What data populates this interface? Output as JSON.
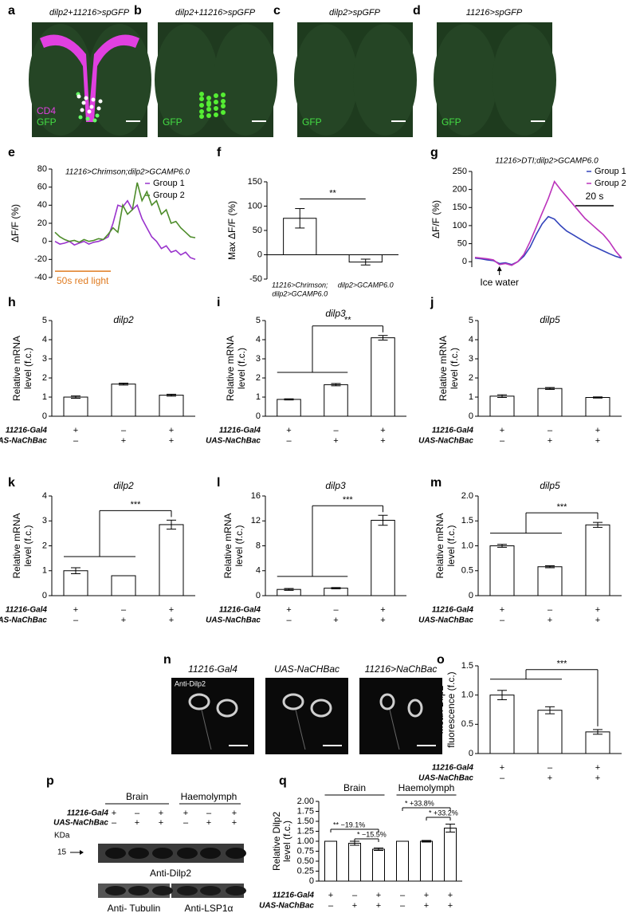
{
  "images": [
    {
      "label": "a",
      "title": "dilp2+11216>spGFP",
      "channels": [
        "CD4",
        "GFP"
      ]
    },
    {
      "label": "b",
      "title": "dilp2+11216>spGFP",
      "channels": [
        "GFP"
      ]
    },
    {
      "label": "c",
      "title": "dilp2>spGFP",
      "channels": [
        "GFP"
      ]
    },
    {
      "label": "d",
      "title": "11216>spGFP",
      "channels": [
        "GFP"
      ]
    }
  ],
  "chart_data": [
    {
      "label": "e",
      "type": "line",
      "title": "11216>Chrimson;dilp2>GCAMP6.0",
      "ylabel": [
        "ΔF/F (%)"
      ],
      "ylim": [
        -40,
        80
      ],
      "yticks": [
        -40,
        -20,
        0,
        20,
        40,
        60,
        80
      ],
      "legend": "upper right",
      "series": [
        {
          "name": "Group 1",
          "color": "#9933cc",
          "values": [
            0,
            -3,
            -2,
            0,
            -4,
            -2,
            0,
            -3,
            -1,
            0,
            2,
            5,
            20,
            40,
            38,
            45,
            35,
            40,
            25,
            15,
            5,
            0,
            -8,
            -5,
            -12,
            -10,
            -15,
            -12,
            -18,
            -20
          ]
        },
        {
          "name": "Group 2",
          "color": "#4d8c2a",
          "values": [
            10,
            5,
            2,
            0,
            1,
            -1,
            2,
            0,
            1,
            3,
            2,
            8,
            15,
            10,
            40,
            30,
            35,
            65,
            45,
            55,
            40,
            45,
            30,
            35,
            20,
            22,
            15,
            10,
            5,
            4
          ]
        }
      ],
      "annotation": "50s red light",
      "annotation_color": "#e07b20"
    },
    {
      "label": "f",
      "type": "bar",
      "ylabel": [
        "Max ΔF/F (%)"
      ],
      "ylim": [
        -50,
        150
      ],
      "yticks": [
        -50,
        0,
        50,
        100,
        150
      ],
      "categories": [
        [
          "11216>Chrimson;",
          "dilp2>GCAMP6.0"
        ],
        [
          "dilp2>GCAMP6.0"
        ]
      ],
      "values": [
        75,
        -15
      ],
      "errors": [
        20,
        6
      ],
      "significance": "**",
      "color": "#ffffff"
    },
    {
      "label": "g",
      "type": "line",
      "title": "11216>DTI;dilp2>GCAMP6.0",
      "ylabel": [
        "ΔF/F (%)"
      ],
      "ylim": [
        -15,
        250
      ],
      "yticks": [
        0,
        50,
        100,
        150,
        200,
        250
      ],
      "legend": "upper right",
      "series": [
        {
          "name": "Group 1",
          "color": "#3344bb",
          "values": [
            10,
            8,
            5,
            3,
            -5,
            -3,
            -8,
            0,
            15,
            40,
            75,
            105,
            125,
            118,
            100,
            85,
            75,
            65,
            55,
            45,
            38,
            30,
            22,
            15,
            10
          ]
        },
        {
          "name": "Group 2",
          "color": "#bb33bb",
          "values": [
            12,
            10,
            8,
            5,
            -8,
            -5,
            -10,
            0,
            20,
            55,
            95,
            135,
            175,
            222,
            200,
            180,
            160,
            140,
            120,
            105,
            90,
            75,
            55,
            30,
            10
          ]
        }
      ],
      "annotation": "Ice water",
      "scalebar": "20 s"
    },
    {
      "label": "h",
      "type": "bar",
      "title": "dilp2",
      "ylabel": [
        "Relative mRNA",
        "level (f.c.)"
      ],
      "ylim": [
        0,
        5
      ],
      "yticks": [
        0,
        1,
        2,
        3,
        4,
        5
      ],
      "values": [
        1.0,
        1.68,
        1.1
      ],
      "errors": [
        0.06,
        0.05,
        0.05
      ],
      "color": "#ffffff",
      "genotype": {
        "rows": [
          "11216-Gal4",
          "UAS-NaChBac"
        ],
        "signs": [
          [
            "+",
            "–",
            "+"
          ],
          [
            "–",
            "+",
            "+"
          ]
        ]
      }
    },
    {
      "label": "i",
      "type": "bar",
      "title": "dilp3",
      "ylabel": [
        "Relative mRNA",
        "level (f.c.)"
      ],
      "ylim": [
        0,
        5
      ],
      "yticks": [
        0,
        1,
        2,
        3,
        4,
        5
      ],
      "values": [
        0.88,
        1.65,
        4.1
      ],
      "errors": [
        0.03,
        0.06,
        0.12
      ],
      "significance": "**",
      "color": "#ffffff",
      "genotype": {
        "rows": [
          "11216-Gal4",
          "UAS-NaChBac"
        ],
        "signs": [
          [
            "+",
            "–",
            "+"
          ],
          [
            "–",
            "+",
            "+"
          ]
        ]
      }
    },
    {
      "label": "j",
      "type": "bar",
      "title": "dilp5",
      "ylabel": [
        "Relative mRNA",
        "level (f.c.)"
      ],
      "ylim": [
        0,
        5
      ],
      "yticks": [
        0,
        1,
        2,
        3,
        4,
        5
      ],
      "values": [
        1.05,
        1.45,
        0.98
      ],
      "errors": [
        0.07,
        0.05,
        0.03
      ],
      "color": "#ffffff",
      "genotype": {
        "rows": [
          "11216-Gal4",
          "UAS-NaChBac"
        ],
        "signs": [
          [
            "+",
            "–",
            "+"
          ],
          [
            "–",
            "+",
            "+"
          ]
        ]
      }
    },
    {
      "label": "k",
      "type": "bar",
      "title": "dilp2",
      "ylabel": [
        "Relative mRNA",
        "level (f.c.)"
      ],
      "ylim": [
        0,
        4
      ],
      "yticks": [
        0,
        1,
        2,
        3,
        4
      ],
      "values": [
        1.0,
        0.8,
        2.85
      ],
      "errors": [
        0.12,
        0,
        0.18
      ],
      "significance": "***",
      "color": "#ffffff",
      "genotype": {
        "rows": [
          "11216-Gal4",
          "UAS-NaChBac"
        ],
        "signs": [
          [
            "+",
            "–",
            "+"
          ],
          [
            "–",
            "+",
            "+"
          ]
        ]
      }
    },
    {
      "label": "l",
      "type": "bar",
      "title": "dilp3",
      "ylabel": [
        "Relative mRNA",
        "level (f.c.)"
      ],
      "ylim": [
        0,
        16
      ],
      "yticks": [
        0,
        4,
        8,
        12,
        16
      ],
      "values": [
        1.0,
        1.2,
        12.1
      ],
      "errors": [
        0.15,
        0.1,
        0.8
      ],
      "significance": "***",
      "color": "#ffffff",
      "genotype": {
        "rows": [
          "11216-Gal4",
          "UAS-NaChBac"
        ],
        "signs": [
          [
            "+",
            "–",
            "+"
          ],
          [
            "–",
            "+",
            "+"
          ]
        ]
      }
    },
    {
      "label": "m",
      "type": "bar",
      "title": "dilp5",
      "ylabel": [
        "Relative mRNA",
        "level (f.c.)"
      ],
      "ylim": [
        0,
        2
      ],
      "yticks": [
        0,
        0.5,
        {
          "value": 1,
          "label": "1.0"
        },
        1.5,
        {
          "value": 2,
          "label": "2.0"
        }
      ],
      "values": [
        1.0,
        0.58,
        1.42
      ],
      "errors": [
        0.03,
        0.02,
        0.05
      ],
      "significance": "***",
      "color": "#ffffff",
      "genotype": {
        "rows": [
          "11216-Gal4",
          "UAS-NaChBac"
        ],
        "signs": [
          [
            "+",
            "–",
            "+"
          ],
          [
            "–",
            "+",
            "+"
          ]
        ]
      }
    },
    {
      "label": "o",
      "type": "bar",
      "ylabel": [
        "Mean Dilp2",
        "fluorescence (f.c.)"
      ],
      "ylim": [
        0,
        1.5
      ],
      "yticks": [
        0,
        0.5,
        {
          "value": 1,
          "label": "1.0"
        },
        1.5
      ],
      "values": [
        1.0,
        0.74,
        0.37
      ],
      "errors": [
        0.08,
        0.06,
        0.04
      ],
      "significance": "***",
      "color": "#ffffff",
      "genotype": {
        "rows": [
          "11216-Gal4",
          "UAS-NaChBac"
        ],
        "signs": [
          [
            "+",
            "–",
            "+"
          ],
          [
            "–",
            "+",
            "+"
          ]
        ]
      }
    },
    {
      "label": "q",
      "type": "bar",
      "ylabel": [
        "Relative Dilp2",
        "level (f.c.)"
      ],
      "ylim": [
        0,
        2
      ],
      "yticks": [
        0,
        0.25,
        {
          "value": 0.5,
          "label": "0.50"
        },
        0.75,
        {
          "value": 1,
          "label": "1.00"
        },
        1.25,
        {
          "value": 1.5,
          "label": "1.50"
        },
        1.75,
        {
          "value": 2,
          "label": "2.00"
        }
      ],
      "values": [
        1.0,
        0.95,
        0.8,
        1.0,
        1.0,
        1.33
      ],
      "errors": [
        0,
        0.05,
        0.03,
        0,
        0.02,
        0.1
      ],
      "color": "#ffffff",
      "groups": [
        "Brain",
        "Haemolymph"
      ],
      "comparisons": [
        "** −19.1%",
        "* −15.5%",
        "* +33.8%",
        "* +33.2%"
      ],
      "genotype": {
        "rows": [
          "11216-Gal4",
          "UAS-NaChBac"
        ],
        "signs": [
          [
            "+",
            "–",
            "+",
            "–",
            "+",
            "+"
          ],
          [
            "–",
            "+",
            "+",
            "–",
            "+",
            "+"
          ]
        ]
      }
    }
  ],
  "panel_n": {
    "label": "n",
    "titles": [
      "11216-Gal4",
      "UAS-NaCHBac",
      "11216>NaChBac"
    ],
    "stain": "Anti-Dilp2"
  },
  "panel_p": {
    "label": "p",
    "groups": [
      "Brain",
      "Haemolymph"
    ],
    "genotype": {
      "rows": [
        "11216-Gal4",
        "UAS-NaChBac"
      ],
      "signs": [
        [
          "+",
          "–",
          "+",
          "+",
          "–",
          "+"
        ],
        [
          "–",
          "+",
          "+",
          "–",
          "+",
          "+"
        ]
      ]
    },
    "unit": "KDa",
    "marker": 15,
    "bands": [
      "Anti-Dilp2",
      "Anti- Tubulin",
      "Anti-LSP1α"
    ]
  }
}
